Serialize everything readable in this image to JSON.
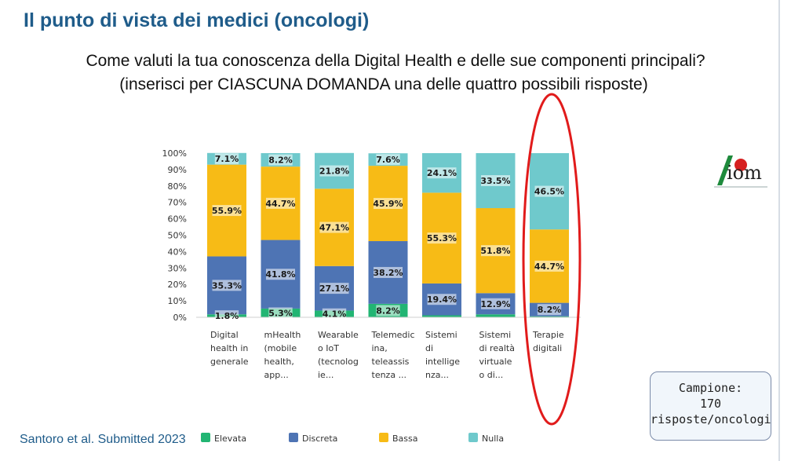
{
  "slide": {
    "title": "Il punto di vista dei medici (oncologi)",
    "question_line1": "Come valuti la tua conoscenza della Digital Health e delle sue componenti principali?",
    "question_line2": "(inserisci per CIASCUNA DOMANDA una delle quattro possibili risposte)",
    "citation": "Santoro et al. Submitted 2023",
    "sample_label": "Campione:",
    "sample_value": "170",
    "sample_unit": "risposte/oncologi",
    "logo_text": "AIOM"
  },
  "chart_data": {
    "type": "bar",
    "stacked": true,
    "percent_stacked": true,
    "title": "",
    "xlabel": "",
    "ylabel": "",
    "ylim": [
      0,
      100
    ],
    "yticks": [
      "0%",
      "10%",
      "20%",
      "30%",
      "40%",
      "50%",
      "60%",
      "70%",
      "80%",
      "90%",
      "100%"
    ],
    "categories": [
      [
        "Digital",
        "health in",
        "generale"
      ],
      [
        "mHealth",
        "(mobile",
        "health,",
        "app..."
      ],
      [
        "Wearable",
        "o IoT",
        "(tecnolog",
        "ie..."
      ],
      [
        "Telemedic",
        "ina,",
        "teleassis",
        "tenza ..."
      ],
      [
        "Sistemi",
        "di",
        "intellige",
        "nza..."
      ],
      [
        "Sistemi",
        "di realtà",
        "virtuale",
        "o di..."
      ],
      [
        "Terapie",
        "digitali"
      ]
    ],
    "series": [
      {
        "name": "Elevata",
        "color": "#22b573",
        "values": [
          1.8,
          5.3,
          4.1,
          8.2,
          1.2,
          1.8,
          0.6
        ],
        "labels": [
          "1.8%",
          "5.3%",
          "4.1%",
          "8.2%",
          "",
          "",
          ""
        ]
      },
      {
        "name": "Discreta",
        "color": "#4e74b4",
        "values": [
          35.3,
          41.8,
          27.1,
          38.2,
          19.4,
          12.9,
          8.2
        ],
        "labels": [
          "35.3%",
          "41.8%",
          "27.1%",
          "38.2%",
          "19.4%",
          "12.9%",
          "8.2%"
        ]
      },
      {
        "name": "Bassa",
        "color": "#f7bb16",
        "values": [
          55.9,
          44.7,
          47.1,
          45.9,
          55.3,
          51.8,
          44.7
        ],
        "labels": [
          "55.9%",
          "44.7%",
          "47.1%",
          "45.9%",
          "55.3%",
          "51.8%",
          "44.7%"
        ]
      },
      {
        "name": "Nulla",
        "color": "#6fc9cc",
        "values": [
          7.1,
          8.2,
          21.8,
          7.6,
          24.1,
          33.5,
          46.5
        ],
        "labels": [
          "7.1%",
          "8.2%",
          "21.8%",
          "7.6%",
          "24.1%",
          "33.5%",
          "46.5%"
        ]
      }
    ],
    "legend_position": "bottom",
    "highlight_category": 6,
    "highlight_color": "#e11b1b"
  }
}
